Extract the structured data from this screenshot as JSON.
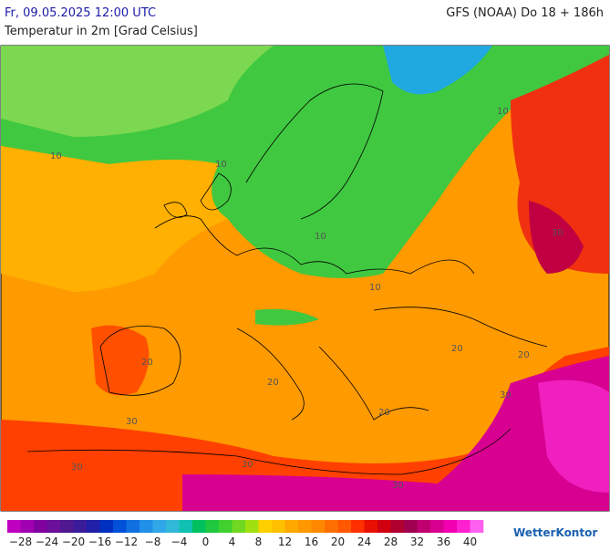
{
  "header": {
    "datetime": "Fr, 09.05.2025 12:00 UTC",
    "model": "GFS (NOAA) Do 18 + 186h",
    "subtitle": "Temperatur in 2m [Grad Celsius]"
  },
  "map": {
    "contour_labels": [
      "10",
      "10",
      "10",
      "10",
      "10",
      "20",
      "20",
      "20",
      "20",
      "20",
      "30",
      "30",
      "30",
      "30",
      "30",
      "30"
    ]
  },
  "scale": {
    "colors": [
      "#c000c0",
      "#a000b0",
      "#8000a0",
      "#6a109a",
      "#501890",
      "#3a1c9a",
      "#2020a8",
      "#0030c0",
      "#0050d8",
      "#1070e0",
      "#2090e8",
      "#30a8e8",
      "#30b8d8",
      "#10c0b0",
      "#00c060",
      "#20c840",
      "#40d030",
      "#70d820",
      "#a0e010",
      "#ffd000",
      "#ffc000",
      "#ffa800",
      "#ff9800",
      "#ff8800",
      "#ff7000",
      "#ff5800",
      "#ff3000",
      "#e81000",
      "#d00010",
      "#b00030",
      "#a00050",
      "#c00070",
      "#d80090",
      "#f000b0",
      "#ff20d0",
      "#ff60f0"
    ],
    "labels": [
      "−28",
      "−24",
      "−20",
      "−16",
      "−12",
      "−8",
      "−4",
      "0",
      "4",
      "8",
      "12",
      "16",
      "20",
      "24",
      "28",
      "32",
      "36",
      "40"
    ]
  },
  "logo": "WetterKontor"
}
